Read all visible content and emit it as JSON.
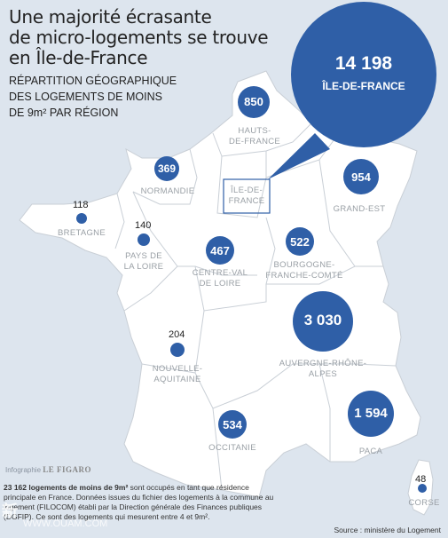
{
  "title": [
    "Une majorité écrasante",
    "de micro-logements se trouve",
    "en Île-de-France"
  ],
  "subtitle": [
    "RÉPARTITION GÉOGRAPHIQUE",
    "DES LOGEMENTS DE MOINS",
    "DE 9m² PAR RÉGION"
  ],
  "colors": {
    "water": "#dde5ee",
    "land": "#ffffff",
    "border": "#c9cfd6",
    "bubble": "#2f5fa7",
    "highlight": "#2f5fa7"
  },
  "regions": [
    {
      "id": "idf",
      "name": "ÎLE-DE-FRANCE",
      "value": "14 198"
    },
    {
      "id": "hdf",
      "name": "HAUTS-DE-FRANCE",
      "value": "850"
    },
    {
      "id": "nor",
      "name": "NORMANDIE",
      "value": "369"
    },
    {
      "id": "ge",
      "name": "GRAND-EST",
      "value": "954"
    },
    {
      "id": "bre",
      "name": "BRETAGNE",
      "value": "118"
    },
    {
      "id": "pdl",
      "name": "PAYS DE LA LOIRE",
      "value": "140"
    },
    {
      "id": "cvl",
      "name": "CENTRE-VAL DE LOIRE",
      "value": "467"
    },
    {
      "id": "bfc",
      "name": "BOURGOGNE-FRANCHE-COMTÉ",
      "value": "522"
    },
    {
      "id": "ara",
      "name": "AUVERGNE-RHÔNE-ALPES",
      "value": "3 030"
    },
    {
      "id": "naq",
      "name": "NOUVELLE-AQUITAINE",
      "value": "204"
    },
    {
      "id": "occ",
      "name": "OCCITANIE",
      "value": "534"
    },
    {
      "id": "paca",
      "name": "PACA",
      "value": "1 594"
    },
    {
      "id": "cor",
      "name": "CORSE",
      "value": "48"
    }
  ],
  "labels": {
    "hdf": [
      "HAUTS-",
      "DE-FRANCE"
    ],
    "nor": [
      "NORMANDIE"
    ],
    "ge": [
      "GRAND-EST"
    ],
    "bre": [
      "BRETAGNE"
    ],
    "pdl": [
      "PAYS DE",
      "LA LOIRE"
    ],
    "cvl": [
      "CENTRE-VAL",
      "DE LOIRE"
    ],
    "bfc": [
      "BOURGOGNE-",
      "FRANCHE-COMTÉ"
    ],
    "ara": [
      "AUVERGNE-RHÔNE-",
      "ALPES"
    ],
    "naq": [
      "NOUVELLE-",
      "AQUITAINE"
    ],
    "occ": [
      "OCCITANIE"
    ],
    "paca": [
      "PACA"
    ],
    "cor": [
      "CORSE"
    ],
    "idf": [
      "ÎLE-DE-",
      "FRANCE"
    ]
  },
  "credit": {
    "prefix": "Infographie",
    "brand": "LE FIGARO"
  },
  "note": {
    "bold": "23 162 logements de moins de 9m²",
    "text": " sont occupés en tant que résidence principale en France. Données issues du fichier des logements à la commune au logement (FILOCOM) établi par la Direction générale des Finances publiques (DGFIP). Ce sont des logements qui mesurent entre 4 et 9m²."
  },
  "source": "Source : ministère du Logement",
  "watermark": [
    "新",
    "WWW.OUAM.COM"
  ]
}
